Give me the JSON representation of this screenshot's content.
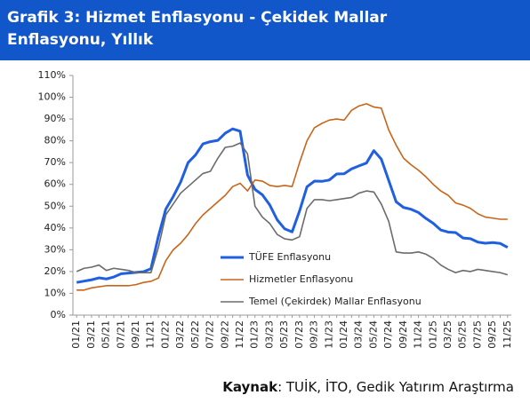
{
  "chart_data": {
    "type": "line",
    "title": "Grafik 3: Hizmet Enflasyonu - Çekidek Mallar Enflasyonu, Yıllık",
    "source_prefix": "Kaynak",
    "source": ": TUİK, İTO, Gedik Yatırım Araştırma",
    "categories": [
      "01/21",
      null,
      "03/21",
      null,
      "05/21",
      null,
      "07/21",
      null,
      "09/21",
      null,
      "11/21",
      null,
      "01/22",
      null,
      "03/22",
      null,
      "05/22",
      null,
      "07/22",
      null,
      "09/22",
      null,
      "11/22",
      null,
      "01/23",
      null,
      "03/23",
      null,
      "05/23",
      null,
      "07/23",
      null,
      "09/23",
      null,
      "11/23",
      null,
      "01/24",
      null,
      "03/24",
      null,
      "05/24",
      null,
      "07/24",
      null,
      "09/24",
      null,
      "11/24",
      null,
      "01/25",
      null,
      "03/25",
      null,
      "05/25",
      null,
      "07/25",
      null,
      "09/25",
      null,
      "11/25"
    ],
    "series": [
      {
        "name": "TÜFE Enflasyonu",
        "color": "#1f5fe0",
        "width": 3,
        "values": [
          15.0,
          15.6,
          16.2,
          17.1,
          16.6,
          17.5,
          19.0,
          19.3,
          19.6,
          19.9,
          21.3,
          36.1,
          48.7,
          54.4,
          61.1,
          70.0,
          73.5,
          78.6,
          79.6,
          80.2,
          83.5,
          85.5,
          84.4,
          64.3,
          57.7,
          55.2,
          50.5,
          43.7,
          39.6,
          38.2,
          47.8,
          58.9,
          61.5,
          61.4,
          62.0,
          64.8,
          64.9,
          67.1,
          68.5,
          69.8,
          75.5,
          71.6,
          61.8,
          52.0,
          49.4,
          48.6,
          47.1,
          44.4,
          42.1,
          39.1,
          38.1,
          37.9,
          35.4,
          35.1,
          33.5,
          33.0,
          33.3,
          32.9,
          31.1
        ]
      },
      {
        "name": "Hizmetler Enflasyonu",
        "color": "#c8651b",
        "width": 1.6,
        "values": [
          11.5,
          11.5,
          12.5,
          13,
          13.5,
          13.5,
          13.5,
          13.5,
          14,
          15,
          15.5,
          17,
          25,
          30,
          33,
          37,
          42,
          46,
          49,
          52,
          55,
          59,
          60.5,
          57,
          62,
          61.5,
          59.5,
          59,
          59.5,
          59,
          70,
          80,
          86,
          88,
          89.5,
          90,
          89.5,
          94,
          96,
          97,
          95.5,
          95,
          85,
          78,
          72,
          69,
          66.5,
          63.5,
          60,
          57,
          55,
          51.5,
          50.5,
          49,
          46.5,
          45,
          44.5,
          44,
          44
        ]
      },
      {
        "name": "Temel (Çekirdek) Mallar Enflasyonu",
        "color": "#6b6b6b",
        "width": 1.6,
        "values": [
          20,
          21.5,
          22,
          23,
          20.5,
          21.5,
          21,
          20.5,
          19.5,
          19.5,
          19.5,
          31,
          46,
          51,
          56,
          59,
          62,
          65,
          66,
          72,
          77,
          77.5,
          79,
          74,
          50,
          45,
          42,
          37,
          35,
          34.5,
          36,
          49,
          53,
          53,
          52.5,
          53,
          53.5,
          54,
          56,
          57,
          56.5,
          51,
          43,
          29,
          28.5,
          28.5,
          29,
          28,
          26,
          23,
          21,
          19.5,
          20.5,
          20,
          21,
          20.5,
          20,
          19.5,
          18.5
        ]
      }
    ],
    "ylim": [
      0,
      110
    ],
    "yticks": [
      {
        "value": 0,
        "label": "0%"
      },
      {
        "value": 10,
        "label": "10%"
      },
      {
        "value": 20,
        "label": "20%"
      },
      {
        "value": 30,
        "label": "30%"
      },
      {
        "value": 40,
        "label": "40%"
      },
      {
        "value": 50,
        "label": "50%"
      },
      {
        "value": 60,
        "label": "60%"
      },
      {
        "value": 70,
        "label": "70%"
      },
      {
        "value": 80,
        "label": "80%"
      },
      {
        "value": 90,
        "label": "90%"
      },
      {
        "value": 100,
        "label": "100%"
      },
      {
        "value": 110,
        "label": "110%"
      }
    ],
    "grid": false,
    "legend": "lower-center"
  }
}
